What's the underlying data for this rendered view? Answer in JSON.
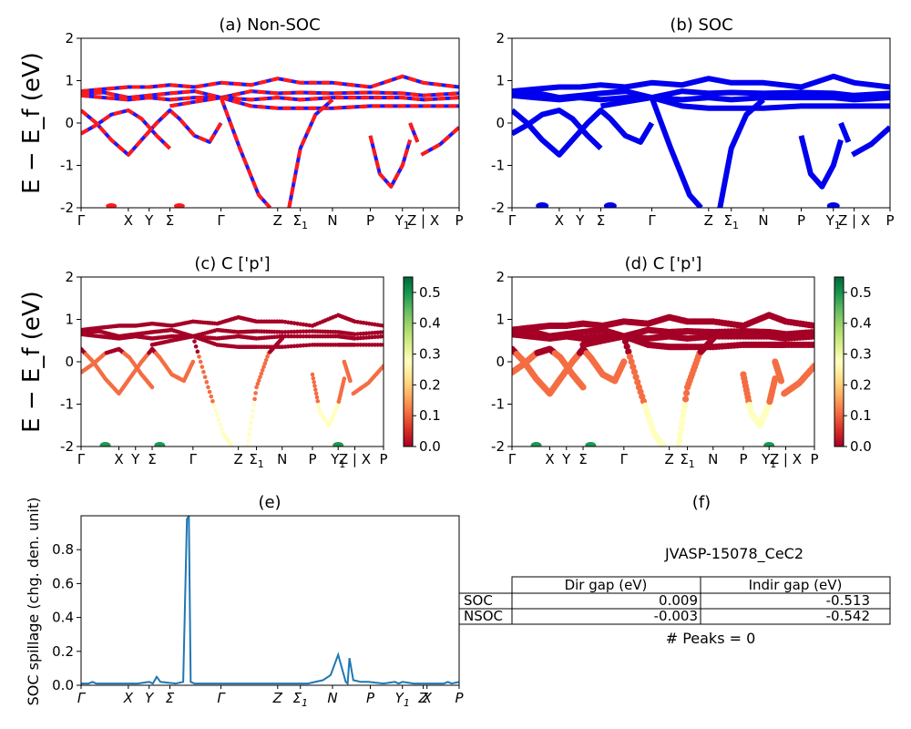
{
  "figure": {
    "ylabel_energy": "E − E_f (eV)",
    "ylabel_spillage": "SOC spillage (chg. den. unit)"
  },
  "kpath": {
    "labels": [
      "Γ",
      "X",
      "Y",
      "Σ",
      "Γ",
      "Z",
      "Σ1",
      "N",
      "P",
      "Y1",
      "Z | X",
      "P"
    ],
    "positions": [
      0,
      0.125,
      0.18,
      0.235,
      0.37,
      0.52,
      0.58,
      0.665,
      0.765,
      0.85,
      0.905,
      1.0
    ]
  },
  "spill_kpath": {
    "labels": [
      "Γ",
      "X",
      "Y",
      "Σ",
      "Γ",
      "Z",
      "Σ1",
      "N",
      "P",
      "Y1",
      "Z",
      "X",
      "P"
    ],
    "positions": [
      0,
      0.125,
      0.18,
      0.235,
      0.37,
      0.52,
      0.58,
      0.665,
      0.765,
      0.85,
      0.905,
      0.915,
      1.0
    ]
  },
  "chart_data": [
    {
      "id": "a",
      "type": "line",
      "title": "(a) Non-SOC",
      "ylabel": "E − E_f (eV)",
      "ylim": [
        -2,
        2
      ],
      "yticks": [
        -2,
        -1,
        0,
        1,
        2
      ],
      "style": "red-blue dashed",
      "bands": [
        {
          "name": "b1",
          "x": [
            0,
            0.06,
            0.125,
            0.18,
            0.235,
            0.3,
            0.37,
            0.45,
            0.52,
            0.58,
            0.665,
            0.765,
            0.85,
            0.905,
            1.0
          ],
          "y": [
            0.75,
            0.8,
            0.85,
            0.85,
            0.9,
            0.85,
            0.95,
            0.9,
            1.05,
            0.95,
            0.95,
            0.85,
            1.1,
            0.95,
            0.85
          ]
        },
        {
          "name": "b2",
          "x": [
            0,
            0.06,
            0.125,
            0.18,
            0.235,
            0.3,
            0.37,
            0.45,
            0.52,
            0.58,
            0.665,
            0.765,
            0.85,
            0.905,
            1.0
          ],
          "y": [
            0.7,
            0.72,
            0.6,
            0.65,
            0.7,
            0.75,
            0.6,
            0.75,
            0.7,
            0.72,
            0.7,
            0.72,
            0.7,
            0.65,
            0.7
          ]
        },
        {
          "name": "b3",
          "x": [
            0,
            0.06,
            0.125,
            0.18,
            0.235,
            0.3,
            0.37,
            0.45,
            0.52,
            0.58,
            0.665,
            0.765,
            0.85,
            0.905,
            1.0
          ],
          "y": [
            0.65,
            0.6,
            0.55,
            0.6,
            0.55,
            0.6,
            0.6,
            0.55,
            0.6,
            0.55,
            0.6,
            0.6,
            0.6,
            0.55,
            0.6
          ]
        },
        {
          "name": "b4",
          "x": [
            0.235,
            0.3,
            0.37,
            0.45,
            0.52,
            0.58,
            0.665,
            0.765,
            0.85,
            0.905,
            1.0
          ],
          "y": [
            0.4,
            0.5,
            0.6,
            0.4,
            0.35,
            0.35,
            0.35,
            0.4,
            0.4,
            0.4,
            0.4
          ]
        },
        {
          "name": "b5",
          "x": [
            0,
            0.04,
            0.08,
            0.125,
            0.16,
            0.2,
            0.235,
            0.26,
            0.3,
            0.34,
            0.37
          ],
          "y": [
            0.3,
            0.0,
            -0.4,
            -0.75,
            -0.4,
            0.0,
            0.3,
            0.1,
            -0.3,
            -0.45,
            0.0
          ]
        },
        {
          "name": "b6",
          "x": [
            0,
            0.04,
            0.08,
            0.125,
            0.16,
            0.2,
            0.235
          ],
          "y": [
            -0.25,
            -0.05,
            0.2,
            0.3,
            0.1,
            -0.3,
            -0.6
          ]
        },
        {
          "name": "b7",
          "x": [
            0.37,
            0.42,
            0.47,
            0.5
          ],
          "y": [
            0.6,
            -0.6,
            -1.7,
            -2.0
          ]
        },
        {
          "name": "b8",
          "x": [
            0.55,
            0.58,
            0.62,
            0.665
          ],
          "y": [
            -2.0,
            -0.6,
            0.2,
            0.55
          ]
        },
        {
          "name": "b9",
          "x": [
            0.765,
            0.79,
            0.82,
            0.85,
            0.87
          ],
          "y": [
            -0.3,
            -1.2,
            -1.5,
            -1.0,
            -0.4
          ]
        },
        {
          "name": "b10",
          "x": [
            0.87,
            0.89
          ],
          "y": [
            0.0,
            -0.45
          ]
        },
        {
          "name": "b11",
          "x": [
            0.9,
            0.95,
            1.0
          ],
          "y": [
            -0.75,
            -0.5,
            -0.1
          ]
        }
      ]
    },
    {
      "id": "b",
      "type": "line",
      "title": "(b) SOC",
      "ylim": [
        -2,
        2
      ],
      "yticks": [
        -2,
        -1,
        0,
        1,
        2
      ],
      "style": "blue thick",
      "bands": [
        {
          "name": "b1",
          "x": [
            0,
            0.06,
            0.125,
            0.18,
            0.235,
            0.3,
            0.37,
            0.45,
            0.52,
            0.58,
            0.665,
            0.765,
            0.85,
            0.905,
            1.0
          ],
          "y": [
            0.75,
            0.8,
            0.85,
            0.85,
            0.9,
            0.85,
            0.95,
            0.9,
            1.05,
            0.95,
            0.95,
            0.85,
            1.1,
            0.95,
            0.85
          ]
        },
        {
          "name": "b2",
          "x": [
            0,
            0.06,
            0.125,
            0.18,
            0.235,
            0.3,
            0.37,
            0.45,
            0.52,
            0.58,
            0.665,
            0.765,
            0.85,
            0.905,
            1.0
          ],
          "y": [
            0.7,
            0.72,
            0.6,
            0.65,
            0.7,
            0.75,
            0.6,
            0.75,
            0.7,
            0.72,
            0.7,
            0.72,
            0.7,
            0.65,
            0.7
          ]
        },
        {
          "name": "b3",
          "x": [
            0,
            0.06,
            0.125,
            0.18,
            0.235,
            0.3,
            0.37,
            0.45,
            0.52,
            0.58,
            0.665,
            0.765,
            0.85,
            0.905,
            1.0
          ],
          "y": [
            0.65,
            0.6,
            0.55,
            0.6,
            0.55,
            0.6,
            0.6,
            0.55,
            0.6,
            0.55,
            0.6,
            0.6,
            0.6,
            0.55,
            0.6
          ]
        },
        {
          "name": "b4",
          "x": [
            0.235,
            0.3,
            0.37,
            0.45,
            0.52,
            0.58,
            0.665,
            0.765,
            0.85,
            0.905,
            1.0
          ],
          "y": [
            0.4,
            0.5,
            0.6,
            0.4,
            0.35,
            0.35,
            0.35,
            0.4,
            0.4,
            0.4,
            0.4
          ]
        },
        {
          "name": "b5",
          "x": [
            0,
            0.04,
            0.08,
            0.125,
            0.16,
            0.2,
            0.235,
            0.26,
            0.3,
            0.34,
            0.37
          ],
          "y": [
            0.3,
            0.0,
            -0.4,
            -0.75,
            -0.4,
            0.0,
            0.3,
            0.1,
            -0.3,
            -0.45,
            0.0
          ]
        },
        {
          "name": "b6",
          "x": [
            0,
            0.04,
            0.08,
            0.125,
            0.16,
            0.2,
            0.235
          ],
          "y": [
            -0.25,
            -0.05,
            0.2,
            0.3,
            0.1,
            -0.3,
            -0.6
          ]
        },
        {
          "name": "b7",
          "x": [
            0.37,
            0.42,
            0.47,
            0.5
          ],
          "y": [
            0.6,
            -0.6,
            -1.7,
            -2.0
          ]
        },
        {
          "name": "b8",
          "x": [
            0.55,
            0.58,
            0.62,
            0.665
          ],
          "y": [
            -2.0,
            -0.6,
            0.2,
            0.55
          ]
        },
        {
          "name": "b9",
          "x": [
            0.765,
            0.79,
            0.82,
            0.85,
            0.87
          ],
          "y": [
            -0.3,
            -1.2,
            -1.5,
            -1.0,
            -0.4
          ]
        },
        {
          "name": "b10",
          "x": [
            0.87,
            0.89
          ],
          "y": [
            0.0,
            -0.45
          ]
        },
        {
          "name": "b11",
          "x": [
            0.9,
            0.95,
            1.0
          ],
          "y": [
            -0.75,
            -0.5,
            -0.1
          ]
        }
      ]
    },
    {
      "id": "c",
      "type": "scatter",
      "title": "(c)  C ['p']",
      "ylabel": "E − E_f (eV)",
      "ylim": [
        -2,
        2
      ],
      "yticks": [
        -2,
        -1,
        0,
        1,
        2
      ],
      "colorbar": {
        "min": 0.0,
        "max": 0.55,
        "ticks": [
          0.0,
          0.1,
          0.2,
          0.3,
          0.4,
          0.5
        ],
        "colormap": "RdYlGn"
      },
      "point_weights": {
        "upper_bands": 0.0,
        "dip_bands": 0.12,
        "deep_edges": 0.25,
        "bottom_blobs": 0.52
      }
    },
    {
      "id": "d",
      "type": "scatter",
      "title": "(d) C ['p']",
      "ylim": [
        -2,
        2
      ],
      "yticks": [
        -2,
        -1,
        0,
        1,
        2
      ],
      "colorbar": {
        "min": 0.0,
        "max": 0.55,
        "ticks": [
          0.0,
          0.1,
          0.2,
          0.3,
          0.4,
          0.5
        ],
        "colormap": "RdYlGn"
      }
    },
    {
      "id": "e",
      "type": "line",
      "title": "(e)",
      "ylabel": "SOC spillage (chg. den. unit)",
      "ylim": [
        0,
        1.0
      ],
      "yticks": [
        0.0,
        0.2,
        0.4,
        0.6,
        0.8
      ],
      "color": "#1f77b4",
      "x": [
        0,
        0.02,
        0.03,
        0.04,
        0.06,
        0.1,
        0.15,
        0.18,
        0.19,
        0.2,
        0.21,
        0.25,
        0.27,
        0.28,
        0.285,
        0.29,
        0.3,
        0.35,
        0.4,
        0.5,
        0.55,
        0.6,
        0.64,
        0.66,
        0.68,
        0.7,
        0.705,
        0.71,
        0.72,
        0.74,
        0.76,
        0.8,
        0.83,
        0.84,
        0.85,
        0.88,
        0.9,
        0.96,
        0.97,
        0.98,
        1.0
      ],
      "y": [
        0.01,
        0.01,
        0.02,
        0.01,
        0.01,
        0.01,
        0.01,
        0.02,
        0.01,
        0.05,
        0.02,
        0.01,
        0.02,
        0.98,
        1.0,
        0.02,
        0.01,
        0.01,
        0.01,
        0.01,
        0.01,
        0.01,
        0.03,
        0.06,
        0.18,
        0.02,
        0.01,
        0.16,
        0.03,
        0.02,
        0.02,
        0.01,
        0.02,
        0.01,
        0.02,
        0.01,
        0.01,
        0.01,
        0.02,
        0.01,
        0.02
      ]
    }
  ],
  "panel_f": {
    "title": "(f)",
    "material": "JVASP-15078_CeC2",
    "table": {
      "headers": [
        "",
        "Dir gap (eV)",
        "Indir gap (eV)"
      ],
      "rows": [
        {
          "label": "SOC",
          "dir": "0.009",
          "indir": "-0.513"
        },
        {
          "label": "NSOC",
          "dir": "-0.003",
          "indir": "-0.542"
        }
      ]
    },
    "peaks": "# Peaks = 0"
  }
}
